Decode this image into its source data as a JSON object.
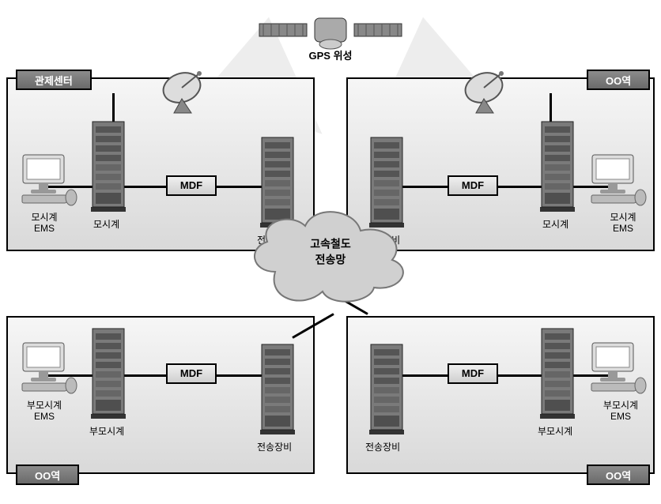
{
  "satellite": {
    "label": "GPS 위성"
  },
  "cloud": {
    "line1": "고속철도",
    "line2": "전송망"
  },
  "panels": {
    "topLeft": {
      "title": "관제센터",
      "dish_label": "GPS 안테나",
      "mdf": "MDF",
      "labels": {
        "ems": "모시계\nEMS",
        "clock": "모시계",
        "tx": "전송장비"
      }
    },
    "topRight": {
      "title": "OO역",
      "dish_label": "GPS 안테나",
      "mdf": "MDF",
      "labels": {
        "ems": "모시계\nEMS",
        "clock": "모시계",
        "tx": "전송장비"
      }
    },
    "bottomLeft": {
      "title": "OO역",
      "mdf": "MDF",
      "labels": {
        "ems": "부모시계\nEMS",
        "clock": "부모시계",
        "tx": "전송장비"
      }
    },
    "bottomRight": {
      "title": "OO역",
      "mdf": "MDF",
      "labels": {
        "ems": "부모시계\nEMS",
        "clock": "부모시계",
        "tx": "전송장비"
      }
    }
  },
  "colors": {
    "panel_border": "#000000",
    "panel_bg_top": "#f6f6f6",
    "panel_bg_bottom": "#d9d9d9",
    "title_bg": "#7a7a7a",
    "title_text": "#ffffff",
    "mdf_border": "#000000",
    "cloud_fill": "#d0d0d0",
    "cloud_stroke": "#777777",
    "rack_body": "#7f7f7f",
    "rack_dark": "#555555",
    "monitor_body": "#888888"
  }
}
